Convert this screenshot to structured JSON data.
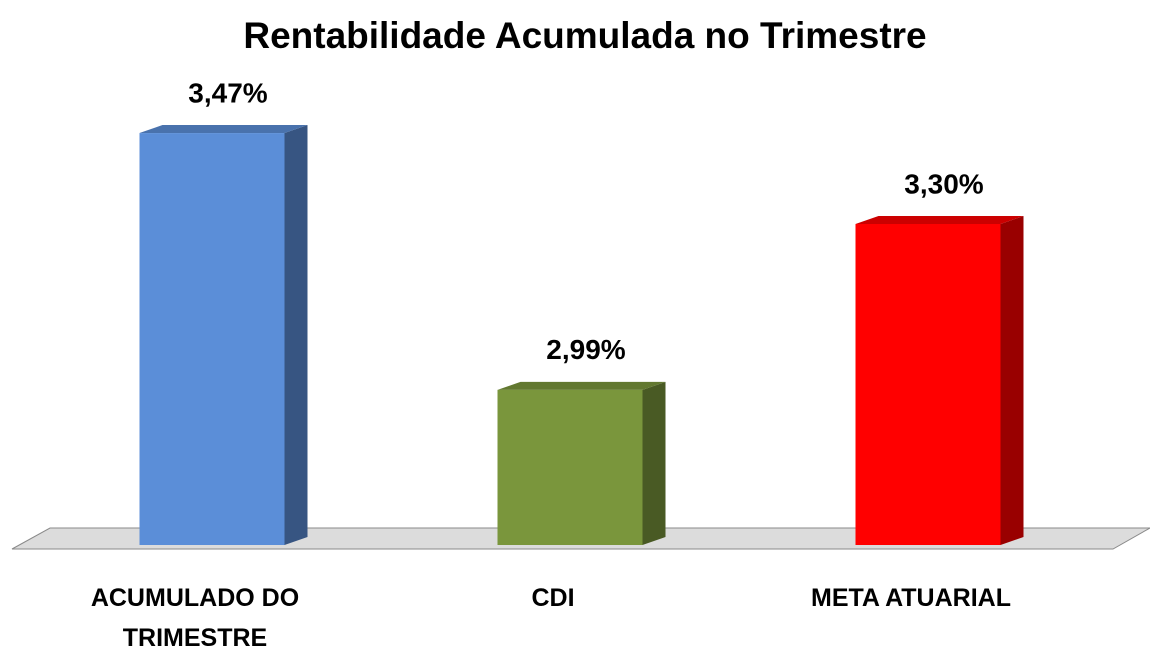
{
  "chart_data": {
    "type": "bar3d",
    "title": "Rentabilidade Acumulada no Trimestre",
    "categories": [
      "ACUMULADO DO TRIMESTRE",
      "CDI",
      "META ATUARIAL"
    ],
    "values": [
      3.47,
      2.99,
      3.3
    ],
    "value_labels": [
      "3,47%",
      "2,99%",
      "3,30%"
    ],
    "colors": [
      "#5b8ed8",
      "#7a963c",
      "#ff0000"
    ],
    "ylim": [
      2.7,
      3.5
    ]
  }
}
